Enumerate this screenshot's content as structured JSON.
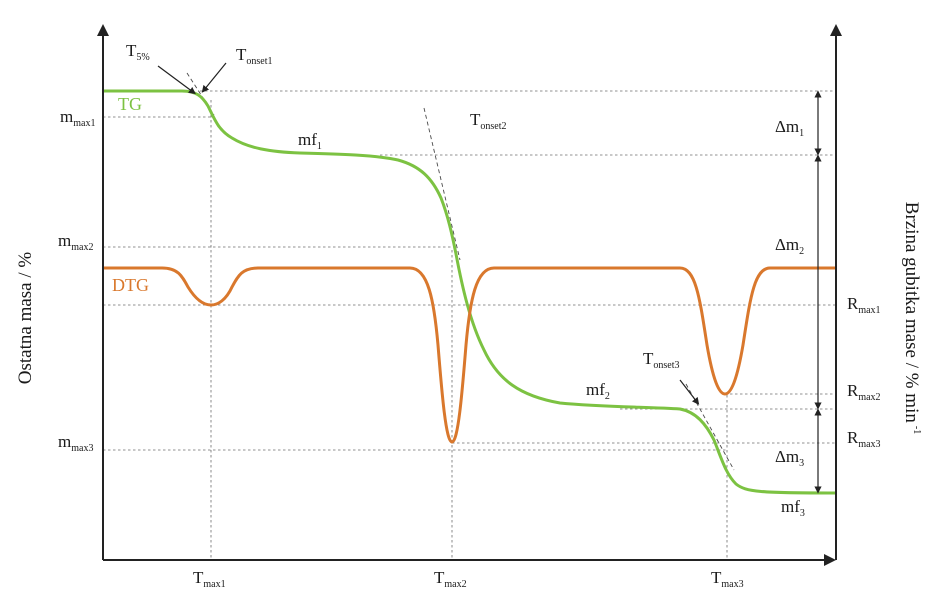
{
  "axes": {
    "y_left_title": "Ostatna masa / %",
    "y_right_title": "Brzina gubitka mase / % min",
    "y_right_title_sup": "-1"
  },
  "curves": {
    "tg_label": "TG",
    "dtg_label": "DTG",
    "tg_color": "#7cc242",
    "dtg_color": "#d9782d"
  },
  "labels": {
    "t5": {
      "main": "T",
      "sub": "5%"
    },
    "tonset1": {
      "main": "T",
      "sub": "onset1"
    },
    "tonset2": {
      "main": "T",
      "sub": "onset2"
    },
    "tonset3": {
      "main": "T",
      "sub": "onset3"
    },
    "mf1": {
      "main": "mf",
      "sub": "1"
    },
    "mf2": {
      "main": "mf",
      "sub": "2"
    },
    "mf3": {
      "main": "mf",
      "sub": "3"
    },
    "mmax1": {
      "main": "m",
      "sub": "max1"
    },
    "mmax2": {
      "main": "m",
      "sub": "max2"
    },
    "mmax3": {
      "main": "m",
      "sub": "max3"
    },
    "tmax1": {
      "main": "T",
      "sub": "max1"
    },
    "tmax2": {
      "main": "T",
      "sub": "max2"
    },
    "tmax3": {
      "main": "T",
      "sub": "max3"
    },
    "rmax1": {
      "main": "R",
      "sub": "max1"
    },
    "rmax2": {
      "main": "R",
      "sub": "max2"
    },
    "rmax3": {
      "main": "R",
      "sub": "max3"
    },
    "dm1": {
      "main": "Δm",
      "sub": "1"
    },
    "dm2": {
      "main": "Δm",
      "sub": "2"
    },
    "dm3": {
      "main": "Δm",
      "sub": "3"
    }
  }
}
